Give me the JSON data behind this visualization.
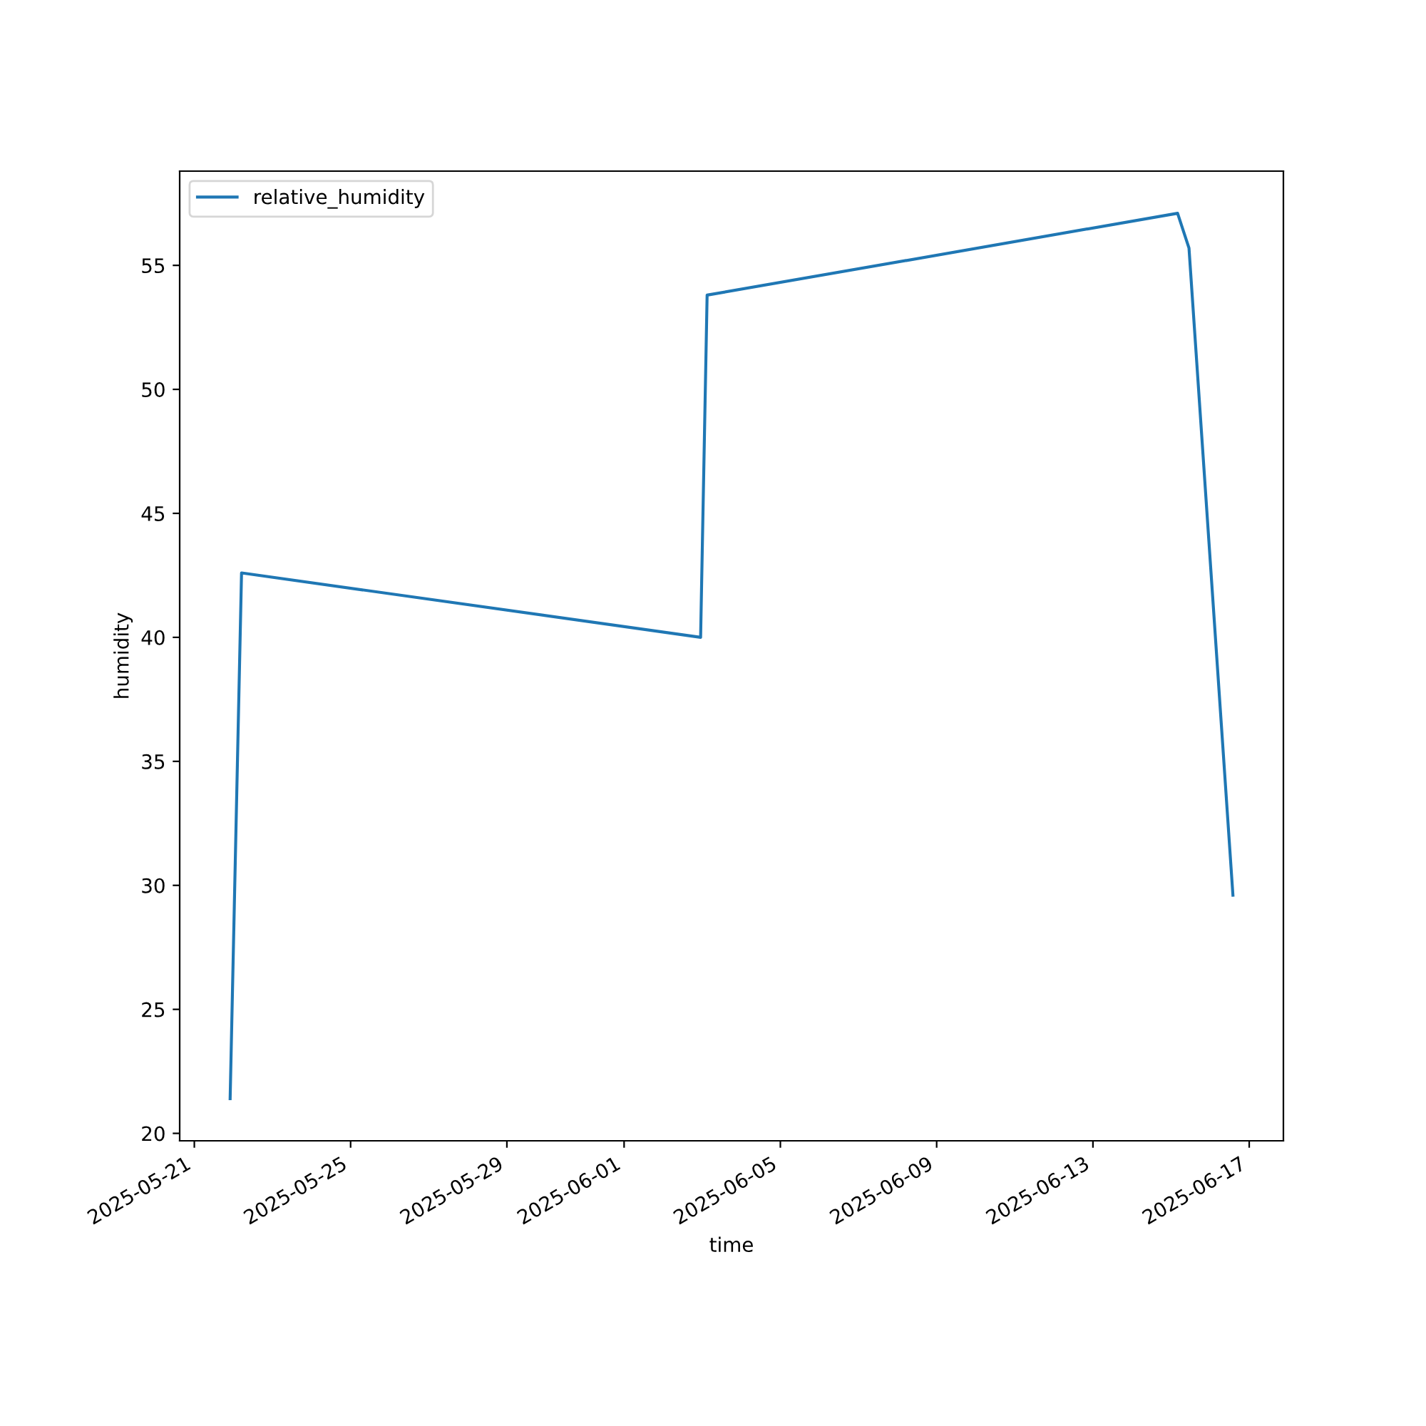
{
  "chart_data": {
    "type": "line",
    "xlabel": "time",
    "ylabel": "humidity",
    "x": [
      "2025-05-21T22:00",
      "2025-05-22T05:00",
      "2025-06-02T23:00",
      "2025-06-03T03:00",
      "2025-06-15T04:00",
      "2025-06-15T11:00",
      "2025-06-16T14:00"
    ],
    "series": [
      {
        "name": "relative_humidity",
        "color": "#1f77b4",
        "values": [
          21.4,
          42.6,
          40.0,
          53.8,
          57.1,
          55.7,
          29.6
        ]
      }
    ],
    "xlim": [
      "2025-05-20T15:00",
      "2025-06-17T21:00"
    ],
    "xticks": [
      "2025-05-21",
      "2025-05-25",
      "2025-05-29",
      "2025-06-01",
      "2025-06-05",
      "2025-06-09",
      "2025-06-13",
      "2025-06-17"
    ],
    "ylim": [
      19.7,
      58.8
    ],
    "yticks": [
      20,
      25,
      30,
      35,
      40,
      45,
      50,
      55
    ],
    "legend": "top left",
    "grid": false
  }
}
